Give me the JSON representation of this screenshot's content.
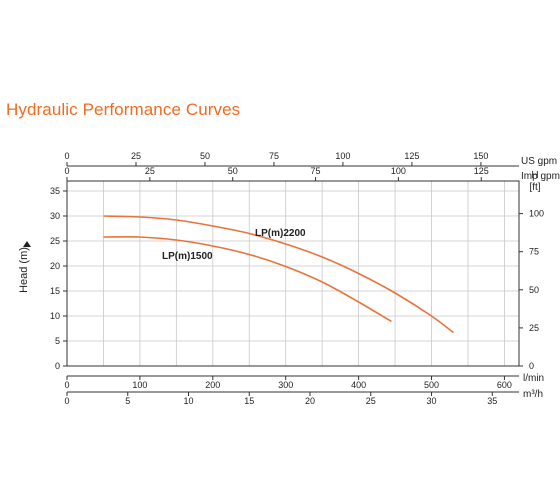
{
  "title": "Hydraulic Performance Curves",
  "chart_data": {
    "type": "line",
    "title": "Hydraulic Performance Curves",
    "ylabel": "Head (m)",
    "ylim": [
      0,
      37
    ],
    "xlim_lmin": [
      0,
      620
    ],
    "grid": true,
    "y_ticks": [
      0,
      5,
      10,
      15,
      20,
      25,
      30,
      35
    ],
    "right_axis": {
      "label_line1": "H",
      "label_line2": "[ft]",
      "ticks": [
        0,
        25,
        50,
        75,
        100
      ],
      "ft_per_m": 3.281
    },
    "bottom_axes": [
      {
        "unit": "l/min",
        "ticks": [
          0,
          100,
          200,
          300,
          400,
          500,
          600
        ],
        "scale": 1
      },
      {
        "unit": "m³/h",
        "ticks": [
          0,
          5,
          10,
          15,
          20,
          25,
          30,
          35
        ],
        "scale": 16.667
      }
    ],
    "top_axes": [
      {
        "unit": "US gpm",
        "ticks": [
          0,
          25,
          50,
          75,
          100,
          125,
          150
        ],
        "scale": 3.785
      },
      {
        "unit": "Imp gpm",
        "ticks": [
          0,
          25,
          50,
          75,
          100,
          125
        ],
        "scale": 4.546
      }
    ],
    "vgrid_lmin": [
      0,
      50,
      100,
      150,
      200,
      250,
      300,
      350,
      400,
      450,
      500,
      550,
      600
    ],
    "series": [
      {
        "name": "LP(m)2200",
        "color": "#e8743b",
        "x": [
          50,
          100,
          150,
          200,
          250,
          300,
          350,
          400,
          450,
          500,
          530
        ],
        "y": [
          30.0,
          29.8,
          29.2,
          28.0,
          26.5,
          24.4,
          21.8,
          18.5,
          14.6,
          10.0,
          6.7
        ]
      },
      {
        "name": "LP(m)1500",
        "color": "#e8743b",
        "x": [
          50,
          100,
          150,
          200,
          250,
          300,
          350,
          400,
          445
        ],
        "y": [
          25.8,
          25.8,
          25.2,
          24.0,
          22.3,
          19.9,
          16.8,
          12.8,
          8.9
        ]
      }
    ]
  }
}
